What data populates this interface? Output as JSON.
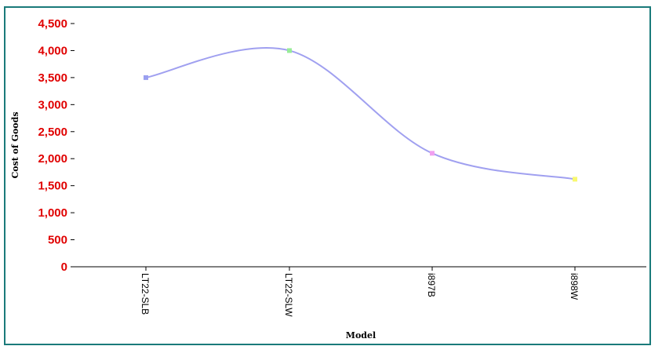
{
  "chart_data": {
    "type": "line",
    "categories": [
      "LT22-SLB",
      "LT22-SLW",
      "i897B",
      "i898W"
    ],
    "series": [
      {
        "values": [
          3500,
          4000,
          2100,
          1620
        ],
        "marker_colors": [
          "#9aa0f0",
          "#98ec98",
          "#f0a0f0",
          "#f8f870"
        ]
      }
    ],
    "xlabel": "Model",
    "ylabel": "Cost of Goods",
    "ylim": [
      0,
      4500
    ],
    "yticks": [
      0,
      500,
      1000,
      1500,
      2000,
      2500,
      3000,
      3500,
      4000,
      4500
    ],
    "ytick_labels": [
      "0",
      "500",
      "1,000",
      "1,500",
      "2,000",
      "2,500",
      "3,000",
      "3,500",
      "4,000",
      "4,500"
    ],
    "grid": false,
    "line_color": "#a0a0f0",
    "tick_label_color": "#e00000",
    "frame_color": "#1a7a7a"
  }
}
